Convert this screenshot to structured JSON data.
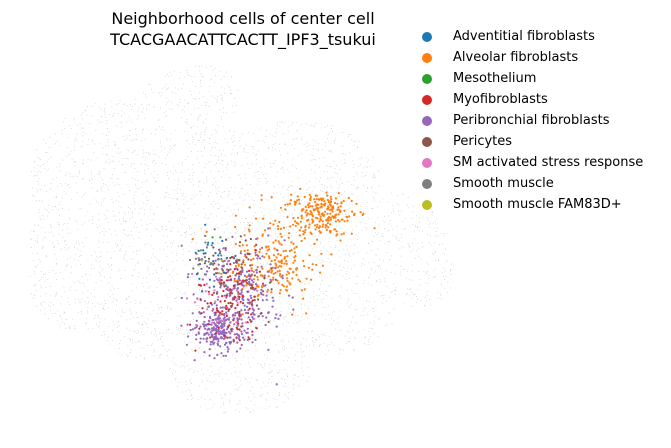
{
  "chart_data": {
    "type": "scatter",
    "title": "Neighborhood cells of center cell\nTCACGAACATTCACTT_IPF3_tsukui",
    "title_lines": [
      "Neighborhood cells of center cell",
      "TCACGAACATTCACTT_IPF3_tsukui"
    ],
    "xlabel": "",
    "ylabel": "",
    "axes_visible": false,
    "grid": false,
    "legend_position": "right",
    "background_color": "#c8c8c8",
    "series": [
      {
        "name": "Adventitial fibroblasts",
        "color": "#1f77b4",
        "approx_count": 60
      },
      {
        "name": "Alveolar fibroblasts",
        "color": "#ff7f0e",
        "approx_count": 900
      },
      {
        "name": "Mesothelium",
        "color": "#2ca02c",
        "approx_count": 4
      },
      {
        "name": "Myofibroblasts",
        "color": "#d62728",
        "approx_count": 200
      },
      {
        "name": "Peribronchial fibroblasts",
        "color": "#9467bd",
        "approx_count": 900
      },
      {
        "name": "Pericytes",
        "color": "#8c564b",
        "approx_count": 150
      },
      {
        "name": "SM activated stress response",
        "color": "#e377c2",
        "approx_count": 70
      },
      {
        "name": "Smooth muscle",
        "color": "#7f7f7f",
        "approx_count": 60
      },
      {
        "name": "Smooth muscle FAM83D+",
        "color": "#bcbd22",
        "approx_count": 6
      }
    ]
  }
}
